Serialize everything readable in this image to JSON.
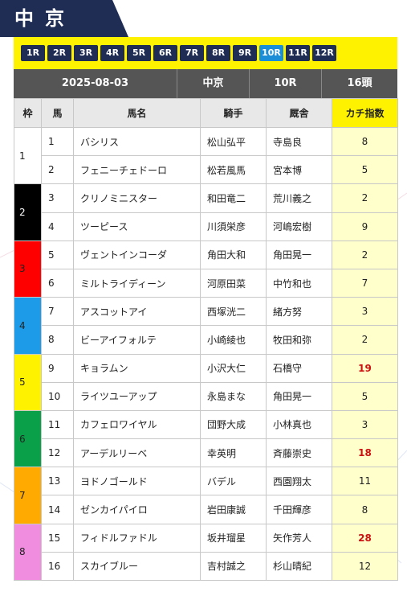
{
  "venue": "中京",
  "race_tabs": [
    {
      "label": "1R",
      "active": false
    },
    {
      "label": "2R",
      "active": false
    },
    {
      "label": "3R",
      "active": false
    },
    {
      "label": "4R",
      "active": false
    },
    {
      "label": "5R",
      "active": false
    },
    {
      "label": "6R",
      "active": false
    },
    {
      "label": "7R",
      "active": false
    },
    {
      "label": "8R",
      "active": false
    },
    {
      "label": "9R",
      "active": false
    },
    {
      "label": "10R",
      "active": true
    },
    {
      "label": "11R",
      "active": false
    },
    {
      "label": "12R",
      "active": false
    }
  ],
  "info": {
    "date": "2025-08-03",
    "venue": "中京",
    "race": "10R",
    "count": "16頭"
  },
  "columns": [
    "枠",
    "馬",
    "馬名",
    "騎手",
    "厩舎",
    "カチ指数"
  ],
  "colors": {
    "navy": "#1f2d55",
    "active_tab": "#1a8fd8",
    "yellow": "#fff200",
    "hot": "#cc1111",
    "waku": {
      "1": "#ffffff",
      "2": "#000000",
      "3": "#ff0000",
      "4": "#1e9be8",
      "5": "#fff200",
      "6": "#0aa04a",
      "7": "#ffaa00",
      "8": "#f08ddf"
    }
  },
  "horses": [
    {
      "waku": "1",
      "num": "1",
      "name": "バシリス",
      "jockey": "松山弘平",
      "trainer": "寺島良",
      "score": "8",
      "hot": false
    },
    {
      "waku": "1",
      "num": "2",
      "name": "フェニーチェドーロ",
      "jockey": "松若風馬",
      "trainer": "宮本博",
      "score": "5",
      "hot": false
    },
    {
      "waku": "2",
      "num": "3",
      "name": "クリノミニスター",
      "jockey": "和田竜二",
      "trainer": "荒川義之",
      "score": "2",
      "hot": false
    },
    {
      "waku": "2",
      "num": "4",
      "name": "ツーピース",
      "jockey": "川須栄彦",
      "trainer": "河嶋宏樹",
      "score": "9",
      "hot": false
    },
    {
      "waku": "3",
      "num": "5",
      "name": "ヴェントインコーダ",
      "jockey": "角田大和",
      "trainer": "角田晃一",
      "score": "2",
      "hot": false
    },
    {
      "waku": "3",
      "num": "6",
      "name": "ミルトライディーン",
      "jockey": "河原田菜",
      "trainer": "中竹和也",
      "score": "7",
      "hot": false
    },
    {
      "waku": "4",
      "num": "7",
      "name": "アスコットアイ",
      "jockey": "西塚洸二",
      "trainer": "緒方努",
      "score": "3",
      "hot": false
    },
    {
      "waku": "4",
      "num": "8",
      "name": "ビーアイフォルテ",
      "jockey": "小崎綾也",
      "trainer": "牧田和弥",
      "score": "2",
      "hot": false
    },
    {
      "waku": "5",
      "num": "9",
      "name": "キョラムン",
      "jockey": "小沢大仁",
      "trainer": "石橋守",
      "score": "19",
      "hot": true
    },
    {
      "waku": "5",
      "num": "10",
      "name": "ライツユーアップ",
      "jockey": "永島まな",
      "trainer": "角田晃一",
      "score": "5",
      "hot": false
    },
    {
      "waku": "6",
      "num": "11",
      "name": "カフェロワイヤル",
      "jockey": "団野大成",
      "trainer": "小林真也",
      "score": "3",
      "hot": false
    },
    {
      "waku": "6",
      "num": "12",
      "name": "アーデルリーベ",
      "jockey": "幸英明",
      "trainer": "斉藤崇史",
      "score": "18",
      "hot": true
    },
    {
      "waku": "7",
      "num": "13",
      "name": "ヨドノゴールド",
      "jockey": "バデル",
      "trainer": "西園翔太",
      "score": "11",
      "hot": false
    },
    {
      "waku": "7",
      "num": "14",
      "name": "ゼンカイパイロ",
      "jockey": "岩田康誠",
      "trainer": "千田輝彦",
      "score": "8",
      "hot": false
    },
    {
      "waku": "8",
      "num": "15",
      "name": "フィドルファドル",
      "jockey": "坂井瑠星",
      "trainer": "矢作芳人",
      "score": "28",
      "hot": true
    },
    {
      "waku": "8",
      "num": "16",
      "name": "スカイブルー",
      "jockey": "吉村誠之",
      "trainer": "杉山晴紀",
      "score": "12",
      "hot": false
    }
  ]
}
